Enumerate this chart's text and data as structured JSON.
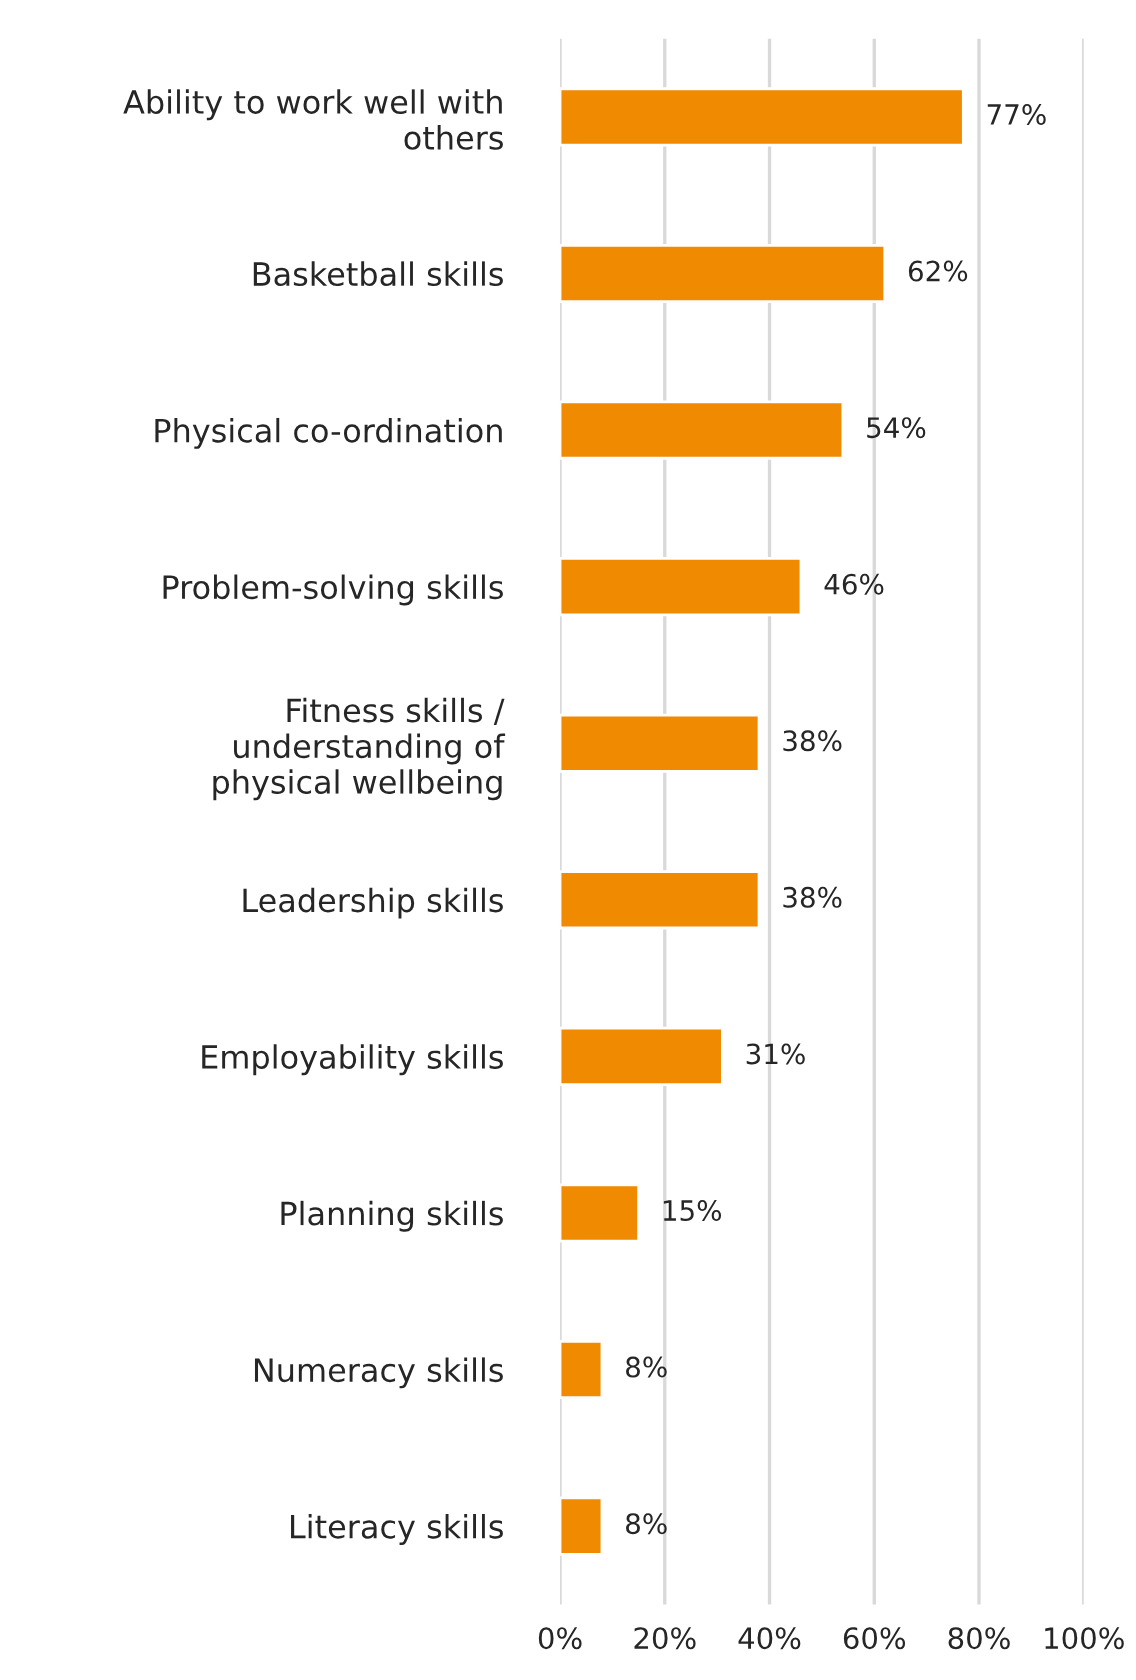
{
  "chart_data": {
    "type": "bar",
    "orientation": "horizontal",
    "categories": [
      "Ability to work well with\nothers",
      "Basketball skills",
      "Physical co-ordination",
      "Problem-solving skills",
      "Fitness skills /\nunderstanding of\nphysical wellbeing",
      "Leadership skills",
      "Employability skills",
      "Planning skills",
      "Numeracy skills",
      "Literacy skills"
    ],
    "values": [
      77,
      62,
      54,
      46,
      38,
      38,
      31,
      15,
      8,
      8
    ],
    "value_labels": [
      "77%",
      "62%",
      "54%",
      "46%",
      "38%",
      "38%",
      "31%",
      "15%",
      "8%",
      "8%"
    ],
    "color": "#f08a00",
    "xlim": [
      0,
      100
    ],
    "xticks": [
      {
        "value": 0,
        "label": "0%"
      },
      {
        "value": 20,
        "label": "20%"
      },
      {
        "value": 40,
        "label": "40%"
      },
      {
        "value": 60,
        "label": "60%"
      },
      {
        "value": 80,
        "label": "80%"
      },
      {
        "value": 100,
        "label": "100%"
      }
    ],
    "grid": "x",
    "legend": false
  }
}
